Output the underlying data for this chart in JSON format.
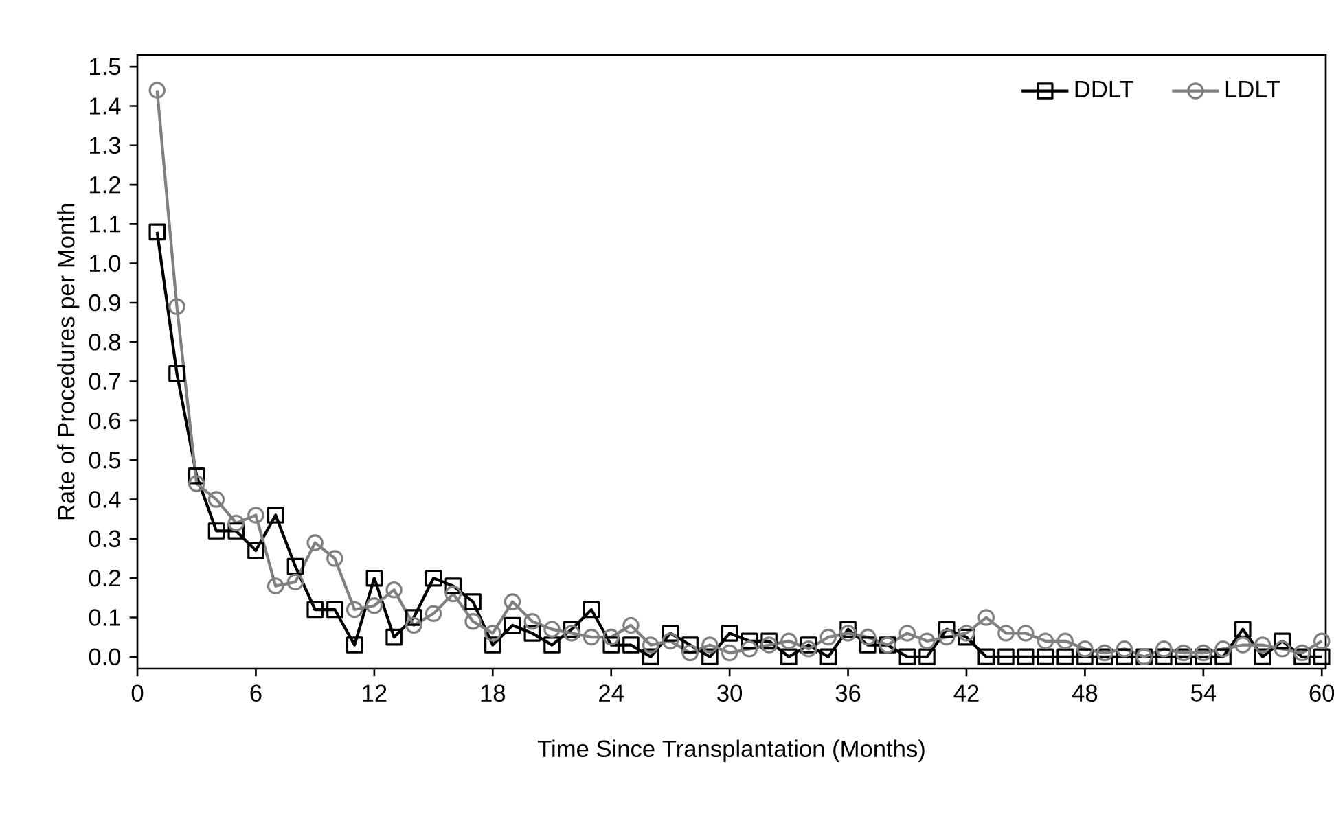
{
  "chart_data": {
    "type": "line",
    "xlabel": "Time Since Transplantation (Months)",
    "ylabel": "Rate of Procedures per Month",
    "x": [
      1,
      2,
      3,
      4,
      5,
      6,
      7,
      8,
      9,
      10,
      11,
      12,
      13,
      14,
      15,
      16,
      17,
      18,
      19,
      20,
      21,
      22,
      23,
      24,
      25,
      26,
      27,
      28,
      29,
      30,
      31,
      32,
      33,
      34,
      35,
      36,
      37,
      38,
      39,
      40,
      41,
      42,
      43,
      44,
      45,
      46,
      47,
      48,
      49,
      50,
      51,
      52,
      53,
      54,
      55,
      56,
      57,
      58,
      59,
      60
    ],
    "series": [
      {
        "name": "DDLT",
        "color": "#000000",
        "marker": "square",
        "values": [
          1.08,
          0.72,
          0.46,
          0.32,
          0.32,
          0.27,
          0.36,
          0.23,
          0.12,
          0.12,
          0.03,
          0.2,
          0.05,
          0.1,
          0.2,
          0.18,
          0.14,
          0.03,
          0.08,
          0.06,
          0.03,
          0.07,
          0.12,
          0.03,
          0.03,
          0.0,
          0.06,
          0.03,
          0.0,
          0.06,
          0.04,
          0.04,
          0.0,
          0.03,
          0.0,
          0.07,
          0.03,
          0.03,
          0.0,
          0.0,
          0.07,
          0.05,
          0.0,
          0.0,
          0.0,
          0.0,
          0.0,
          0.0,
          0.0,
          0.0,
          0.0,
          0.0,
          0.0,
          0.0,
          0.0,
          0.07,
          0.0,
          0.04,
          0.0,
          0.0
        ]
      },
      {
        "name": "LDLT",
        "color": "#808080",
        "marker": "circle",
        "values": [
          1.44,
          0.89,
          0.44,
          0.4,
          0.34,
          0.36,
          0.18,
          0.19,
          0.29,
          0.25,
          0.12,
          0.13,
          0.17,
          0.08,
          0.11,
          0.16,
          0.09,
          0.06,
          0.14,
          0.09,
          0.07,
          0.06,
          0.05,
          0.05,
          0.08,
          0.03,
          0.04,
          0.01,
          0.03,
          0.01,
          0.02,
          0.03,
          0.04,
          0.02,
          0.05,
          0.06,
          0.05,
          0.03,
          0.06,
          0.04,
          0.05,
          0.06,
          0.1,
          0.06,
          0.06,
          0.04,
          0.04,
          0.02,
          0.01,
          0.02,
          0.0,
          0.02,
          0.01,
          0.01,
          0.02,
          0.03,
          0.03,
          0.02,
          0.01,
          0.04
        ]
      }
    ],
    "xlim": [
      0,
      60.2
    ],
    "xticks": [
      0,
      6,
      12,
      18,
      24,
      30,
      36,
      42,
      48,
      54,
      60
    ],
    "ylim": [
      -0.03,
      1.53
    ],
    "yticks": [
      {
        "value": 0,
        "label": "0.0"
      },
      {
        "value": 0.1,
        "label": "0.1"
      },
      {
        "value": 0.2,
        "label": "0.2"
      },
      {
        "value": 0.3,
        "label": "0.3"
      },
      {
        "value": 0.4,
        "label": "0.4"
      },
      {
        "value": 0.5,
        "label": "0.5"
      },
      {
        "value": 0.6,
        "label": "0.6"
      },
      {
        "value": 0.7,
        "label": "0.7"
      },
      {
        "value": 0.8,
        "label": "0.8"
      },
      {
        "value": 0.9,
        "label": "0.9"
      },
      {
        "value": 1.0,
        "label": "1.0"
      },
      {
        "value": 1.1,
        "label": "1.1"
      },
      {
        "value": 1.2,
        "label": "1.2"
      },
      {
        "value": 1.3,
        "label": "1.3"
      },
      {
        "value": 1.4,
        "label": "1.4"
      },
      {
        "value": 1.5,
        "label": "1.5"
      }
    ],
    "legend": "top right",
    "grid": false,
    "line_style": "solid"
  }
}
